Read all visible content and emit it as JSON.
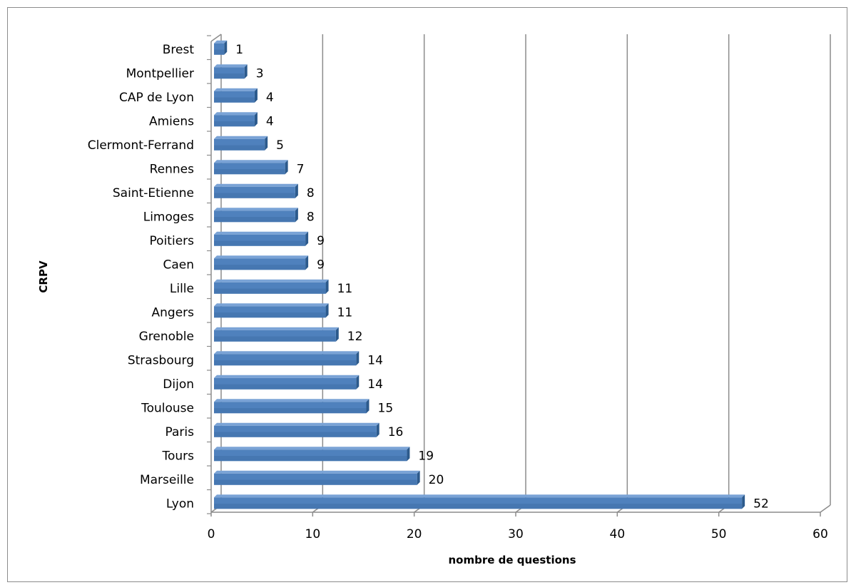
{
  "chart_data": {
    "type": "bar",
    "orientation": "horizontal",
    "title": "",
    "xlabel": "nombre de questions",
    "ylabel": "CRPV",
    "categories": [
      "Lyon",
      "Marseille",
      "Tours",
      "Paris",
      "Toulouse",
      "Dijon",
      "Strasbourg",
      "Grenoble",
      "Angers",
      "Lille",
      "Caen",
      "Poitiers",
      "Limoges",
      "Saint-Etienne",
      "Rennes",
      "Clermont-Ferrand",
      "Amiens",
      "CAP de Lyon",
      "Montpellier",
      "Brest"
    ],
    "values": [
      52,
      20,
      19,
      16,
      15,
      14,
      14,
      12,
      11,
      11,
      9,
      9,
      8,
      8,
      7,
      5,
      4,
      4,
      3,
      1
    ],
    "xlim": [
      0,
      60
    ],
    "xticks": [
      0,
      10,
      20,
      30,
      40,
      50,
      60
    ],
    "grid": true,
    "legend": "none",
    "data_labels": true,
    "colors": {
      "bar": "#4f81bd",
      "bar_dark": "#2c5a8c",
      "grid": "#8c8c8c"
    }
  }
}
